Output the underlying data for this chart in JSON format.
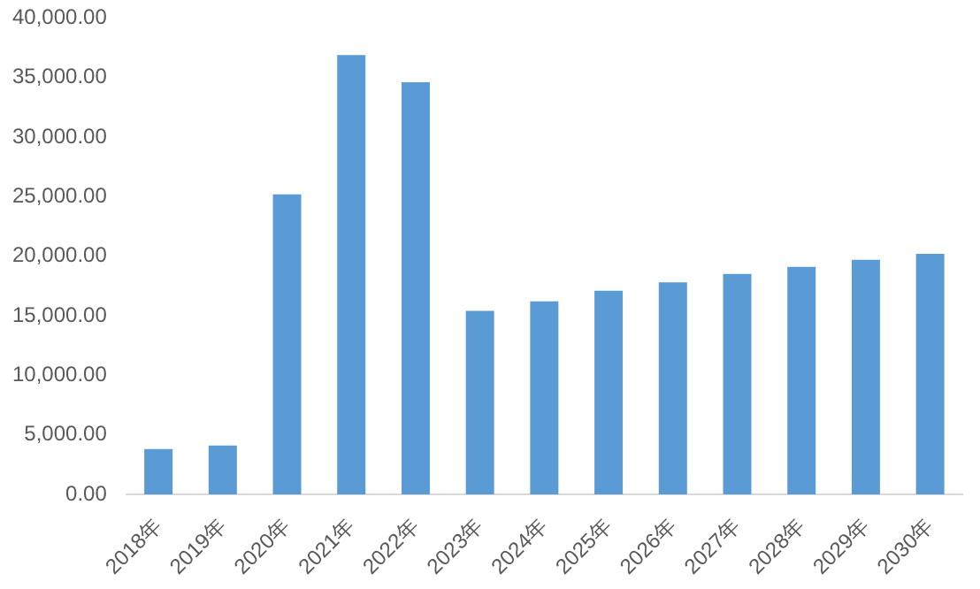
{
  "chart_data": {
    "type": "bar",
    "categories": [
      "2018年",
      "2019年",
      "2020年",
      "2021年",
      "2022年",
      "2023年",
      "2024年",
      "2025年",
      "2026年",
      "2027年",
      "2028年",
      "2029年",
      "2030年"
    ],
    "values": [
      3800,
      4100,
      25200,
      36900,
      34600,
      15400,
      16200,
      17100,
      17800,
      18500,
      19100,
      19700,
      20200
    ],
    "color": "#5b9bd5",
    "ylim": [
      0,
      40000
    ],
    "yticks": [
      {
        "value": 0,
        "label": "0.00"
      },
      {
        "value": 5000,
        "label": "5,000.00"
      },
      {
        "value": 10000,
        "label": "10,000.00"
      },
      {
        "value": 15000,
        "label": "15,000.00"
      },
      {
        "value": 20000,
        "label": "20,000.00"
      },
      {
        "value": 25000,
        "label": "25,000.00"
      },
      {
        "value": 30000,
        "label": "30,000.00"
      },
      {
        "value": 35000,
        "label": "35,000.00"
      },
      {
        "value": 40000,
        "label": "40,000.00"
      }
    ],
    "grid": false,
    "legend": false
  }
}
